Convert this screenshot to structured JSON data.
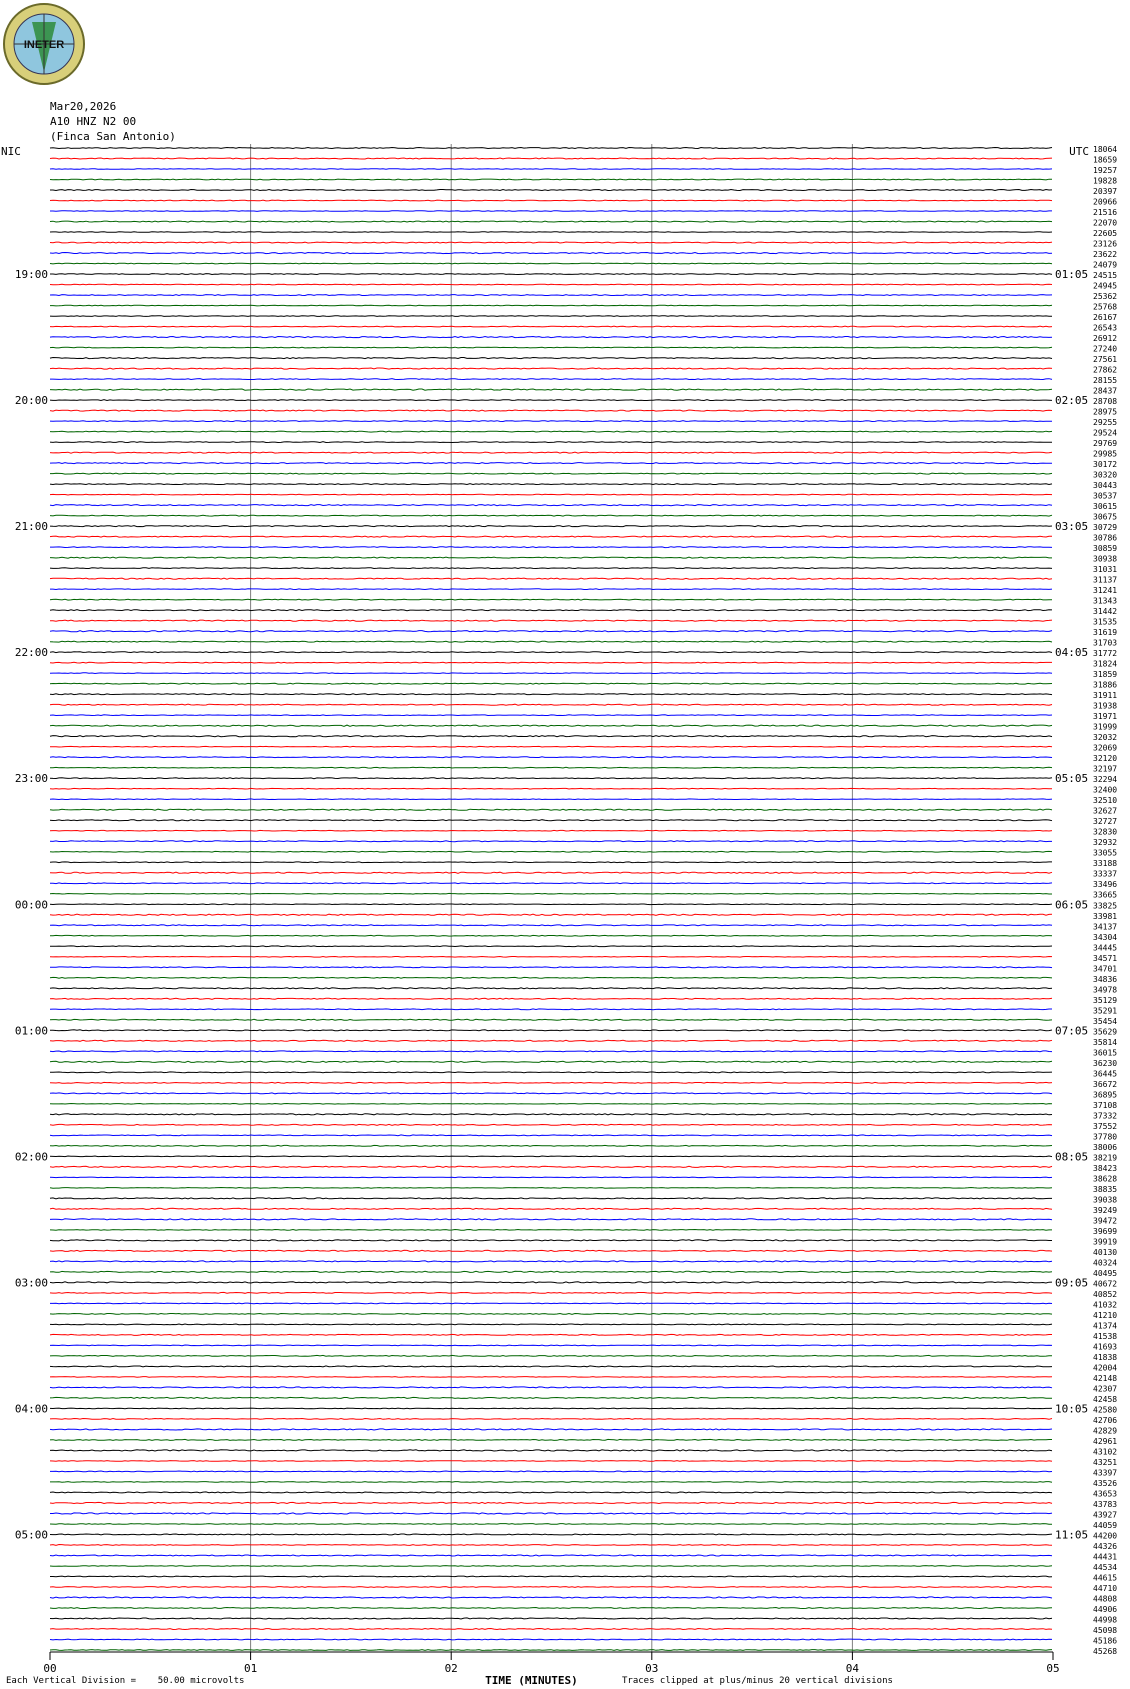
{
  "header": {
    "date": "Mar20,2026",
    "station": "A10 HNZ N2 00",
    "site": "(Finca San Antonio)",
    "logo_text": "INETER",
    "left_zone": "NIC",
    "right_zone": "UTC"
  },
  "footer": {
    "scale_note": "Each Vertical Division =    50.00 microvolts",
    "clip_note": "Traces clipped at plus/minus 20 vertical divisions",
    "xlabel": "TIME (MINUTES)"
  },
  "colors": {
    "black": "#000000",
    "red": "#ff0000",
    "blue": "#0000ff",
    "green": "#006400",
    "grid": "#808080"
  },
  "chart_data": {
    "type": "line",
    "xlabel": "TIME (MINUTES)",
    "xlim": [
      0,
      5
    ],
    "x_ticks": [
      "00",
      "01",
      "02",
      "03",
      "04",
      "05"
    ],
    "trace_colors": [
      "black",
      "red",
      "blue",
      "green"
    ],
    "trace_count": 144,
    "left_hour_labels": [
      "19:00",
      "20:00",
      "21:00",
      "22:00",
      "23:00",
      "00:00",
      "01:00",
      "02:00",
      "03:00",
      "04:00",
      "05:00"
    ],
    "right_hour_labels": [
      "01:05",
      "02:05",
      "03:05",
      "04:05",
      "05:05",
      "06:05",
      "07:05",
      "08:05",
      "09:05",
      "10:05",
      "11:05"
    ],
    "right_counts": [
      "18064",
      "18659",
      "19257",
      "19828",
      "20397",
      "20966",
      "21516",
      "22070",
      "22605",
      "23126",
      "23622",
      "24079",
      "24515",
      "24945",
      "25362",
      "25768",
      "26167",
      "26543",
      "26912",
      "27240",
      "27561",
      "27862",
      "28155",
      "28437",
      "28708",
      "28975",
      "29255",
      "29524",
      "29769",
      "29985",
      "30172",
      "30320",
      "30443",
      "30537",
      "30615",
      "30675",
      "30729",
      "30786",
      "30859",
      "30938",
      "31031",
      "31137",
      "31241",
      "31343",
      "31442",
      "31535",
      "31619",
      "31703",
      "31772",
      "31824",
      "31859",
      "31886",
      "31911",
      "31938",
      "31971",
      "31999",
      "32032",
      "32069",
      "32120",
      "32197",
      "32294",
      "32400",
      "32510",
      "32627",
      "32727",
      "32830",
      "32932",
      "33055",
      "33188",
      "33337",
      "33496",
      "33665",
      "33825",
      "33981",
      "34137",
      "34304",
      "34445",
      "34571",
      "34701",
      "34836",
      "34978",
      "35129",
      "35291",
      "35454",
      "35629",
      "35814",
      "36015",
      "36230",
      "36445",
      "36672",
      "36895",
      "37108",
      "37332",
      "37552",
      "37780",
      "38006",
      "38219",
      "38423",
      "38628",
      "38835",
      "39038",
      "39249",
      "39472",
      "39699",
      "39919",
      "40130",
      "40324",
      "40495",
      "40672",
      "40852",
      "41032",
      "41210",
      "41374",
      "41538",
      "41693",
      "41838",
      "42004",
      "42148",
      "42307",
      "42458",
      "42580",
      "42706",
      "42829",
      "42961",
      "43102",
      "43251",
      "43397",
      "43526",
      "43653",
      "43783",
      "43927",
      "44059",
      "44200",
      "44326",
      "44431",
      "44534",
      "44615",
      "44710",
      "44808",
      "44906",
      "44998",
      "45098",
      "45186",
      "45268"
    ]
  }
}
